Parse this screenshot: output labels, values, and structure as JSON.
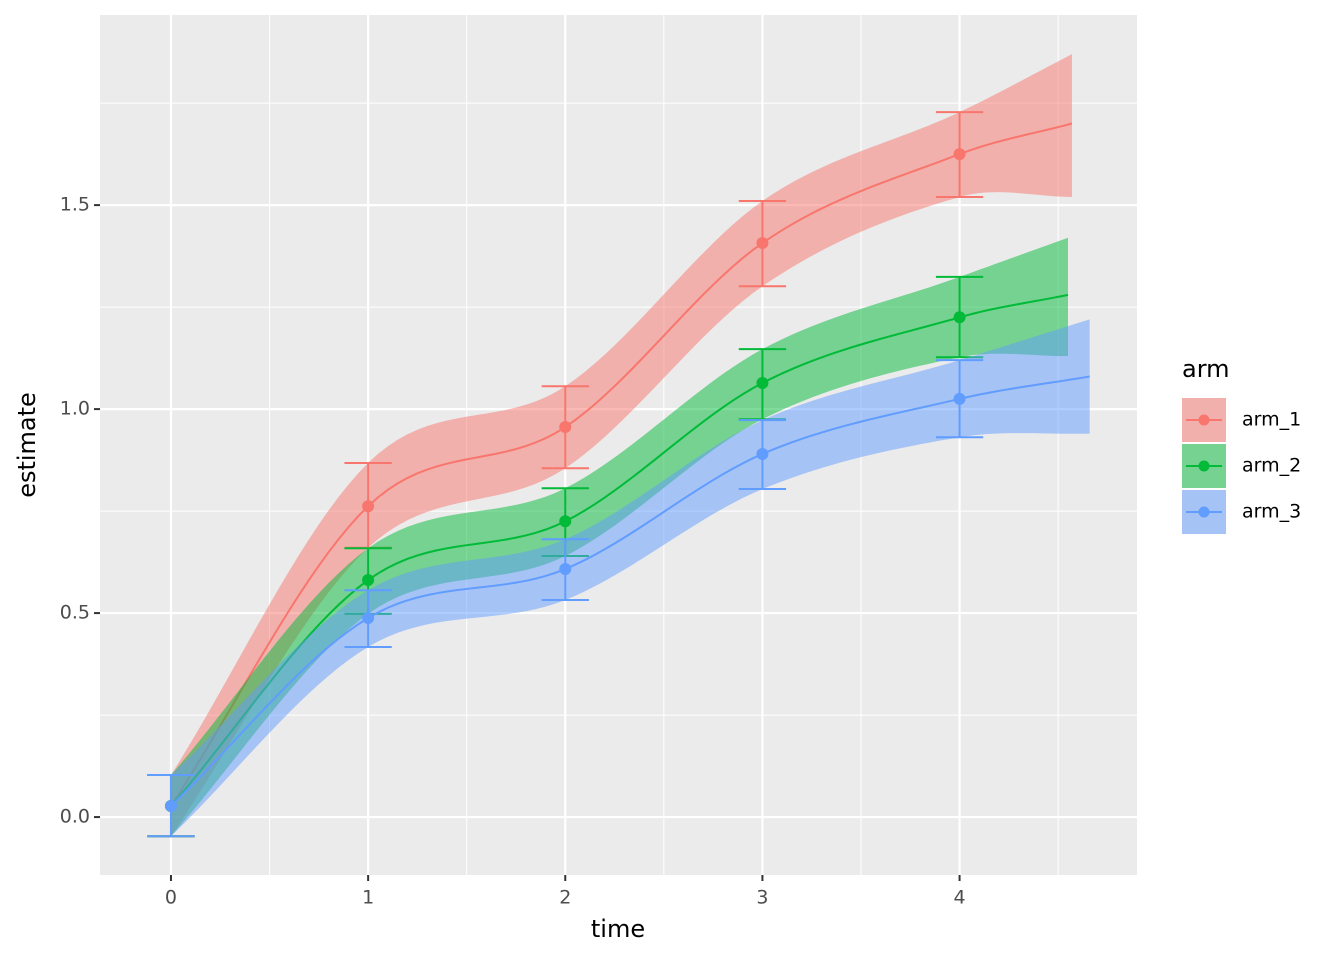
{
  "chart_data": {
    "type": "line",
    "xlabel": "time",
    "ylabel": "estimate",
    "xlim": [
      -0.36,
      4.9
    ],
    "ylim": [
      -0.142,
      1.966
    ],
    "xticks": [
      0,
      1,
      2,
      3,
      4
    ],
    "yticks": [
      {
        "value": 0,
        "label": "0.0"
      },
      {
        "value": 0.5,
        "label": "0.5"
      },
      {
        "value": 1,
        "label": "1.0"
      },
      {
        "value": 1.5,
        "label": "1.5"
      }
    ],
    "xminor": [
      0.5,
      1.5,
      2.5,
      3.5,
      4.5
    ],
    "yminor": [
      0.25,
      0.75,
      1.25,
      1.75
    ],
    "grid": true,
    "legend_title": "arm",
    "legend": "right",
    "series": [
      {
        "name": "arm_1",
        "color": "#F8766D",
        "curve": {
          "x": [
            0,
            1,
            2,
            3,
            4,
            4.57
          ],
          "values": [
            0.027,
            0.762,
            0.956,
            1.407,
            1.625,
            1.7
          ],
          "lower": [
            -0.047,
            0.66,
            0.855,
            1.301,
            1.52,
            1.52
          ],
          "upper": [
            0.103,
            0.868,
            1.056,
            1.51,
            1.728,
            1.87
          ]
        },
        "points": {
          "x": [
            0,
            1,
            2,
            3,
            4
          ],
          "values": [
            0.027,
            0.762,
            0.956,
            1.407,
            1.625
          ],
          "lower": [
            -0.047,
            0.66,
            0.855,
            1.301,
            1.52
          ],
          "upper": [
            0.103,
            0.868,
            1.056,
            1.51,
            1.728
          ]
        }
      },
      {
        "name": "arm_2",
        "color": "#00BA38",
        "curve": {
          "x": [
            0,
            1,
            2,
            3,
            4,
            4.55
          ],
          "values": [
            0.027,
            0.581,
            0.725,
            1.064,
            1.225,
            1.28
          ],
          "lower": [
            -0.047,
            0.498,
            0.64,
            0.975,
            1.127,
            1.13
          ],
          "upper": [
            0.103,
            0.659,
            0.806,
            1.147,
            1.324,
            1.42
          ]
        },
        "points": {
          "x": [
            0,
            1,
            2,
            3,
            4
          ],
          "values": [
            0.027,
            0.581,
            0.725,
            1.064,
            1.225
          ],
          "lower": [
            -0.047,
            0.498,
            0.64,
            0.975,
            1.127
          ],
          "upper": [
            0.103,
            0.659,
            0.806,
            1.147,
            1.324
          ]
        }
      },
      {
        "name": "arm_3",
        "color": "#619CFF",
        "curve": {
          "x": [
            0,
            1,
            2,
            3,
            4,
            4.66
          ],
          "values": [
            0.027,
            0.488,
            0.608,
            0.89,
            1.025,
            1.08
          ],
          "lower": [
            -0.047,
            0.417,
            0.532,
            0.804,
            0.931,
            0.94
          ],
          "upper": [
            0.103,
            0.556,
            0.681,
            0.973,
            1.12,
            1.22
          ]
        },
        "points": {
          "x": [
            0,
            1,
            2,
            3,
            4
          ],
          "values": [
            0.027,
            0.488,
            0.608,
            0.89,
            1.025
          ],
          "lower": [
            -0.047,
            0.417,
            0.532,
            0.804,
            0.931
          ],
          "upper": [
            0.103,
            0.556,
            0.681,
            0.973,
            1.12
          ]
        }
      }
    ]
  }
}
